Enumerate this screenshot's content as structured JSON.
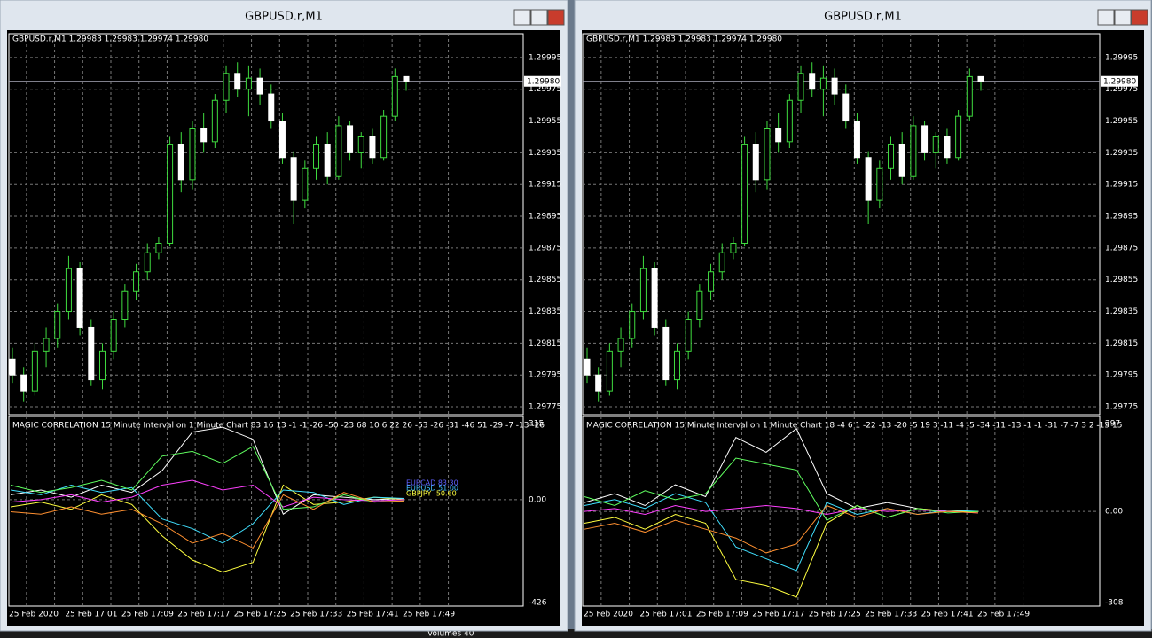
{
  "windows": [
    {
      "title": "GBPUSD.r,M1",
      "header": "GBPUSD.r,M1  1.29983 1.29983 1.29974 1.29980",
      "price_axis": {
        "ylim": [
          1.2977,
          1.3001
        ],
        "ticks": [
          1.29995,
          1.29975,
          1.29955,
          1.29935,
          1.29915,
          1.29895,
          1.29875,
          1.29855,
          1.29835,
          1.29815,
          1.29795,
          1.29775
        ],
        "current": {
          "value": 1.2998,
          "label": "1.29980"
        }
      },
      "time_labels": [
        "25 Feb 2020",
        "25 Feb 17:01",
        "25 Feb 17:09",
        "25 Feb 17:17",
        "25 Feb 17:25",
        "25 Feb 17:33",
        "25 Feb 17:41",
        "25 Feb 17:49"
      ],
      "candles": [
        [
          1.29805,
          1.29812,
          1.2979,
          1.29795
        ],
        [
          1.29795,
          1.298,
          1.29778,
          1.29785
        ],
        [
          1.29785,
          1.29815,
          1.29782,
          1.2981
        ],
        [
          1.2981,
          1.29825,
          1.298,
          1.29818
        ],
        [
          1.29818,
          1.2984,
          1.29812,
          1.29835
        ],
        [
          1.29835,
          1.2987,
          1.2983,
          1.29862
        ],
        [
          1.29862,
          1.29866,
          1.2982,
          1.29825
        ],
        [
          1.29825,
          1.2983,
          1.29788,
          1.29792
        ],
        [
          1.29792,
          1.29815,
          1.29786,
          1.2981
        ],
        [
          1.2981,
          1.29835,
          1.29805,
          1.2983
        ],
        [
          1.2983,
          1.29852,
          1.29825,
          1.29848
        ],
        [
          1.29848,
          1.29865,
          1.29842,
          1.2986
        ],
        [
          1.2986,
          1.29878,
          1.29855,
          1.29872
        ],
        [
          1.29872,
          1.29882,
          1.29868,
          1.29878
        ],
        [
          1.29878,
          1.29945,
          1.29876,
          1.2994
        ],
        [
          1.2994,
          1.29948,
          1.2991,
          1.29918
        ],
        [
          1.29918,
          1.29955,
          1.29912,
          1.2995
        ],
        [
          1.2995,
          1.2996,
          1.29935,
          1.29942
        ],
        [
          1.29942,
          1.29972,
          1.29938,
          1.29968
        ],
        [
          1.29968,
          1.2999,
          1.2996,
          1.29985
        ],
        [
          1.29985,
          1.29992,
          1.2997,
          1.29975
        ],
        [
          1.29975,
          1.2999,
          1.29958,
          1.29982
        ],
        [
          1.29982,
          1.29988,
          1.29965,
          1.29972
        ],
        [
          1.29972,
          1.29978,
          1.2995,
          1.29955
        ],
        [
          1.29955,
          1.2996,
          1.29928,
          1.29932
        ],
        [
          1.29932,
          1.29936,
          1.2989,
          1.29905
        ],
        [
          1.29905,
          1.2993,
          1.299,
          1.29925
        ],
        [
          1.29925,
          1.29945,
          1.29918,
          1.2994
        ],
        [
          1.2994,
          1.29948,
          1.29915,
          1.2992
        ],
        [
          1.2992,
          1.29958,
          1.29918,
          1.29952
        ],
        [
          1.29952,
          1.29955,
          1.2993,
          1.29935
        ],
        [
          1.29935,
          1.29948,
          1.29925,
          1.29945
        ],
        [
          1.29945,
          1.2995,
          1.29928,
          1.29932
        ],
        [
          1.29932,
          1.29962,
          1.2993,
          1.29958
        ],
        [
          1.29958,
          1.29988,
          1.29955,
          1.29983
        ],
        [
          1.29983,
          1.29983,
          1.29974,
          1.2998
        ]
      ],
      "indicator": {
        "label": "MAGIC CORRELATION 15 Minute Interval on 1 Minute Chart  83 16 13 -1 -1 -26 -50 -23 68 10 6 22 26 -53 -26 -31 -46 51 -29 -7 -13 -26",
        "ylim": [
          -426,
          315
        ],
        "ticks": [
          315,
          {
            "value": 0,
            "label": "0.00"
          },
          -426
        ],
        "series": [
          {
            "color": "#ffffff",
            "values": [
              20,
              40,
              10,
              60,
              30,
              120,
              280,
              300,
              250,
              -60,
              20,
              10,
              0,
              5
            ]
          },
          {
            "color": "#ffff40",
            "values": [
              -30,
              -10,
              -40,
              20,
              -20,
              -150,
              -250,
              -300,
              -260,
              60,
              -20,
              -10,
              10,
              0
            ]
          },
          {
            "color": "#40e0ff",
            "values": [
              40,
              20,
              60,
              30,
              50,
              -80,
              -120,
              -180,
              -100,
              40,
              30,
              -20,
              10,
              5
            ]
          },
          {
            "color": "#ff40ff",
            "values": [
              -10,
              0,
              20,
              -10,
              10,
              60,
              80,
              40,
              60,
              -30,
              10,
              0,
              -5,
              0
            ]
          },
          {
            "color": "#60ff60",
            "values": [
              60,
              30,
              50,
              80,
              40,
              180,
              200,
              150,
              220,
              -40,
              -30,
              20,
              -10,
              -5
            ]
          },
          {
            "color": "#ff9030",
            "values": [
              -50,
              -60,
              -30,
              -60,
              -40,
              -100,
              -180,
              -140,
              -200,
              20,
              -40,
              30,
              -10,
              -5
            ]
          }
        ],
        "legend": [
          {
            "name": "EURCAD 83.30",
            "color": "#6060ff"
          },
          {
            "name": "EURUSD 51.00",
            "color": "#40c0ff"
          },
          {
            "name": "GBPJPY -50.60",
            "color": "#ffff40"
          }
        ]
      }
    },
    {
      "title": "GBPUSD.r,M1",
      "header": "GBPUSD.r,M1  1.29983 1.29983 1.29974 1.29980",
      "price_axis": {
        "ylim": [
          1.2977,
          1.3001
        ],
        "ticks": [
          1.29995,
          1.29975,
          1.29955,
          1.29935,
          1.29915,
          1.29895,
          1.29875,
          1.29855,
          1.29835,
          1.29815,
          1.29795,
          1.29775
        ],
        "current": {
          "value": 1.2998,
          "label": "1.29980"
        }
      },
      "time_labels": [
        "25 Feb 2020",
        "25 Feb 17:01",
        "25 Feb 17:09",
        "25 Feb 17:17",
        "25 Feb 17:25",
        "25 Feb 17:33",
        "25 Feb 17:41",
        "25 Feb 17:49"
      ],
      "candles": [
        [
          1.29805,
          1.29812,
          1.2979,
          1.29795
        ],
        [
          1.29795,
          1.298,
          1.29778,
          1.29785
        ],
        [
          1.29785,
          1.29815,
          1.29782,
          1.2981
        ],
        [
          1.2981,
          1.29825,
          1.298,
          1.29818
        ],
        [
          1.29818,
          1.2984,
          1.29812,
          1.29835
        ],
        [
          1.29835,
          1.2987,
          1.2983,
          1.29862
        ],
        [
          1.29862,
          1.29866,
          1.2982,
          1.29825
        ],
        [
          1.29825,
          1.2983,
          1.29788,
          1.29792
        ],
        [
          1.29792,
          1.29815,
          1.29786,
          1.2981
        ],
        [
          1.2981,
          1.29835,
          1.29805,
          1.2983
        ],
        [
          1.2983,
          1.29852,
          1.29825,
          1.29848
        ],
        [
          1.29848,
          1.29865,
          1.29842,
          1.2986
        ],
        [
          1.2986,
          1.29878,
          1.29855,
          1.29872
        ],
        [
          1.29872,
          1.29882,
          1.29868,
          1.29878
        ],
        [
          1.29878,
          1.29945,
          1.29876,
          1.2994
        ],
        [
          1.2994,
          1.29948,
          1.2991,
          1.29918
        ],
        [
          1.29918,
          1.29955,
          1.29912,
          1.2995
        ],
        [
          1.2995,
          1.2996,
          1.29935,
          1.29942
        ],
        [
          1.29942,
          1.29972,
          1.29938,
          1.29968
        ],
        [
          1.29968,
          1.2999,
          1.2996,
          1.29985
        ],
        [
          1.29985,
          1.29992,
          1.2997,
          1.29975
        ],
        [
          1.29975,
          1.2999,
          1.29958,
          1.29982
        ],
        [
          1.29982,
          1.29988,
          1.29965,
          1.29972
        ],
        [
          1.29972,
          1.29978,
          1.2995,
          1.29955
        ],
        [
          1.29955,
          1.2996,
          1.29928,
          1.29932
        ],
        [
          1.29932,
          1.29936,
          1.2989,
          1.29905
        ],
        [
          1.29905,
          1.2993,
          1.299,
          1.29925
        ],
        [
          1.29925,
          1.29945,
          1.29918,
          1.2994
        ],
        [
          1.2994,
          1.29948,
          1.29915,
          1.2992
        ],
        [
          1.2992,
          1.29958,
          1.29918,
          1.29952
        ],
        [
          1.29952,
          1.29955,
          1.2993,
          1.29935
        ],
        [
          1.29935,
          1.29948,
          1.29925,
          1.29945
        ],
        [
          1.29945,
          1.2995,
          1.29928,
          1.29932
        ],
        [
          1.29932,
          1.29962,
          1.2993,
          1.29958
        ],
        [
          1.29958,
          1.29988,
          1.29955,
          1.29983
        ],
        [
          1.29983,
          1.29983,
          1.29974,
          1.2998
        ]
      ],
      "indicator": {
        "label": "MAGIC CORRELATION 15 Minute Interval on 1 Minute Chart  18 -4 6 1 -22 -13 -20 -5 19 3 -11 -4 -5 -34 -11 -13 -1 -1 -31 -7 -7 3 2 -15 15",
        "ylim": [
          -308,
          297
        ],
        "ticks": [
          297,
          {
            "value": 0,
            "label": "0.00"
          },
          -308
        ],
        "series": [
          {
            "color": "#ffffff",
            "values": [
              30,
              60,
              20,
              90,
              50,
              250,
              200,
              280,
              60,
              10,
              30,
              10,
              0,
              0
            ]
          },
          {
            "color": "#ffff40",
            "values": [
              -40,
              -20,
              -60,
              -10,
              -40,
              -230,
              -250,
              -290,
              -40,
              20,
              -20,
              10,
              0,
              0
            ]
          },
          {
            "color": "#40e0ff",
            "values": [
              20,
              40,
              10,
              60,
              30,
              -120,
              -160,
              -200,
              30,
              -10,
              10,
              -10,
              5,
              0
            ]
          },
          {
            "color": "#ff40ff",
            "values": [
              0,
              10,
              -10,
              20,
              0,
              10,
              20,
              10,
              -10,
              10,
              0,
              5,
              0,
              -5
            ]
          },
          {
            "color": "#60ff60",
            "values": [
              50,
              20,
              70,
              40,
              60,
              180,
              160,
              140,
              -30,
              20,
              -20,
              10,
              -5,
              0
            ]
          },
          {
            "color": "#ff9030",
            "values": [
              -60,
              -40,
              -70,
              -30,
              -60,
              -90,
              -140,
              -110,
              20,
              -20,
              10,
              -10,
              0,
              -5
            ]
          }
        ],
        "legend": []
      }
    }
  ],
  "taskbar": [
    "Volumes 40"
  ]
}
